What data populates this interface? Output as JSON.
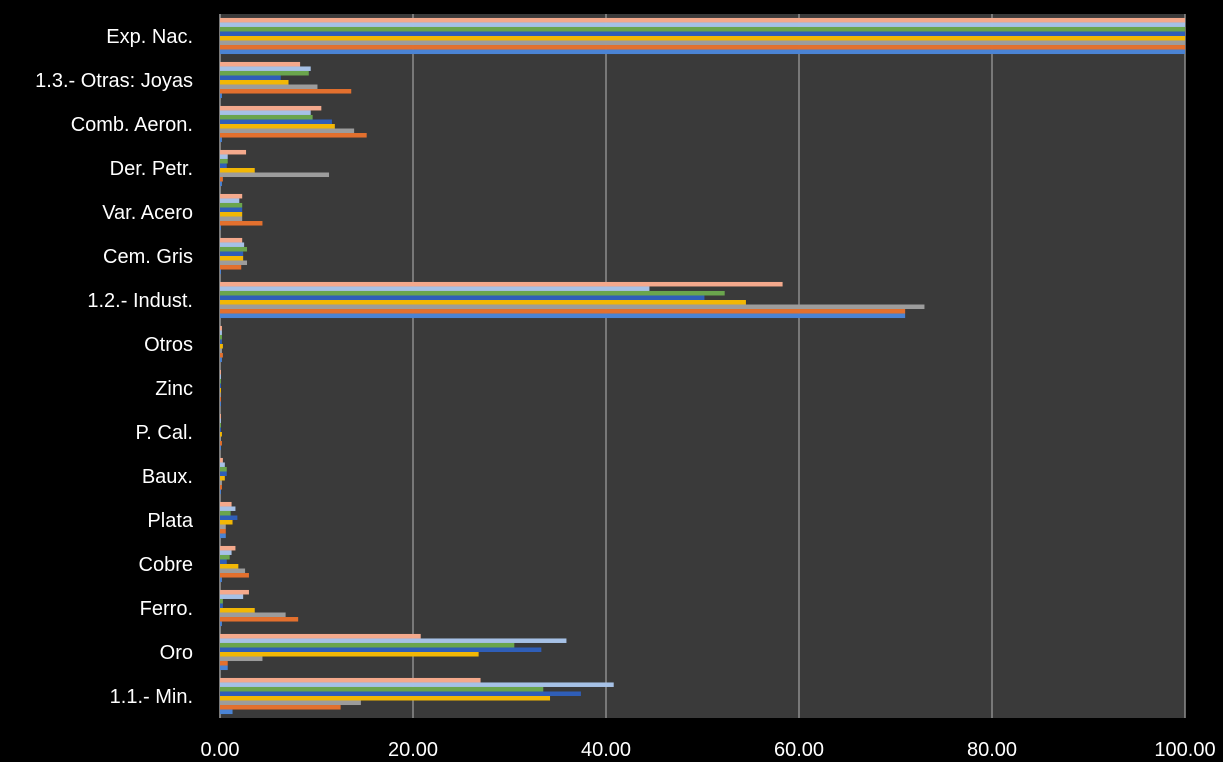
{
  "chart_data": {
    "type": "bar",
    "orientation": "horizontal",
    "categories": [
      "Exp. Nac.",
      "1.3.- Otras: Joyas",
      "Comb. Aeron.",
      "Der. Petr.",
      "Var. Acero",
      "Cem. Gris",
      "1.2.- Indust.",
      "Otros",
      "Zinc",
      "P. Cal.",
      "Baux.",
      "Plata",
      "Cobre",
      "Ferro.",
      "Oro",
      "1.1.- Min."
    ],
    "x_ticks": [
      "0.00",
      "20.00",
      "40.00",
      "60.00",
      "80.00",
      "100.00"
    ],
    "xlim": [
      0,
      100
    ],
    "grid": true,
    "legend": "none",
    "series": [
      {
        "color": "#f4a98c",
        "values": [
          100,
          8.3,
          10.5,
          2.7,
          2.3,
          2.3,
          58.3,
          0.2,
          0.1,
          0.1,
          0.3,
          1.2,
          1.6,
          3.0,
          20.8,
          27.0
        ]
      },
      {
        "color": "#a6c1e6",
        "values": [
          100,
          9.4,
          9.4,
          0.8,
          2.0,
          2.5,
          44.5,
          0.2,
          0.1,
          0.1,
          0.5,
          1.6,
          1.2,
          2.4,
          35.9,
          40.8
        ]
      },
      {
        "color": "#6aa54d",
        "values": [
          100,
          9.2,
          9.6,
          0.8,
          2.3,
          2.8,
          52.3,
          0.2,
          0.1,
          0.1,
          0.7,
          1.1,
          1.0,
          0.3,
          30.5,
          33.5
        ]
      },
      {
        "color": "#2f5eb8",
        "values": [
          100,
          6.3,
          11.6,
          0.7,
          2.3,
          2.4,
          50.2,
          0.2,
          0.1,
          0.1,
          0.7,
          1.8,
          0.7,
          0.3,
          33.3,
          37.4
        ]
      },
      {
        "color": "#f2b705",
        "values": [
          100,
          7.1,
          11.9,
          3.6,
          2.3,
          2.4,
          54.5,
          0.3,
          0.1,
          0.2,
          0.5,
          1.3,
          1.9,
          3.6,
          26.8,
          34.2
        ]
      },
      {
        "color": "#9c9c9c",
        "values": [
          100,
          10.1,
          13.9,
          11.3,
          2.3,
          2.8,
          73.0,
          0.2,
          0.1,
          0.1,
          0.2,
          0.6,
          2.6,
          6.8,
          4.4,
          14.6
        ]
      },
      {
        "color": "#e3702e",
        "values": [
          100,
          13.6,
          15.2,
          0.3,
          4.4,
          2.2,
          71.0,
          0.3,
          0.1,
          0.2,
          0.2,
          0.6,
          3.0,
          8.1,
          0.8,
          12.5
        ]
      },
      {
        "color": "#4a83d4",
        "values": [
          100,
          0.2,
          0.2,
          0.2,
          0.1,
          0.1,
          71.0,
          0.2,
          0.1,
          0.1,
          0.1,
          0.6,
          0.2,
          0.2,
          0.8,
          1.3
        ]
      }
    ]
  }
}
